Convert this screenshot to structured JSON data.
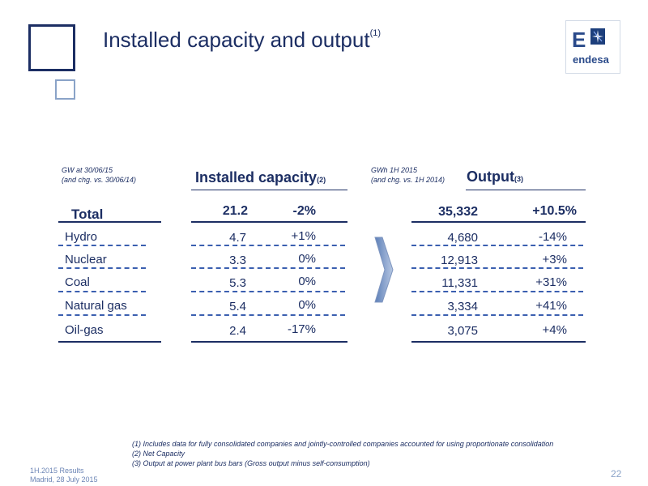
{
  "header": {
    "title": "Installed capacity and output",
    "title_ref": "(1)",
    "logo_mark": "E",
    "logo_word": "endesa"
  },
  "capacity": {
    "unit_line1": "GW at 30/06/15",
    "unit_line2": "(and chg. vs. 30/06/14)",
    "heading": "Installed capacity",
    "heading_ref": "(2)"
  },
  "output": {
    "unit_line1": "GWh 1H 2015",
    "unit_line2": "(and chg. vs. 1H 2014)",
    "heading": "Output",
    "heading_ref": "(3)"
  },
  "total": {
    "label": "Total",
    "capacity": "21.2",
    "capacity_chg": "-2%",
    "output": "35,332",
    "output_chg": "+10.5%"
  },
  "rows": [
    {
      "label": "Hydro",
      "capacity": "4.7",
      "capacity_chg": "+1%",
      "output": "4,680",
      "output_chg": "-14%"
    },
    {
      "label": "Nuclear",
      "capacity": "3.3",
      "capacity_chg": "0%",
      "output": "12,913",
      "output_chg": "+3%"
    },
    {
      "label": "Coal",
      "capacity": "5.3",
      "capacity_chg": "0%",
      "output": "11,331",
      "output_chg": "+31%"
    },
    {
      "label": "Natural gas",
      "capacity": "5.4",
      "capacity_chg": "0%",
      "output": "3,334",
      "output_chg": "+41%"
    },
    {
      "label": "Oil-gas",
      "capacity": "2.4",
      "capacity_chg": "-17%",
      "output": "3,075",
      "output_chg": "+4%"
    }
  ],
  "footnotes": [
    "(1) Includes data for fully consolidated companies and jointly-controlled companies accounted for using proportionate consolidation",
    "(2) Net Capacity",
    "(3) Output at power plant bus bars (Gross output minus self-consumption)"
  ],
  "footer": {
    "line1": "1H.2015 Results",
    "line2": "Madrid, 28 July 2015",
    "page": "22"
  }
}
